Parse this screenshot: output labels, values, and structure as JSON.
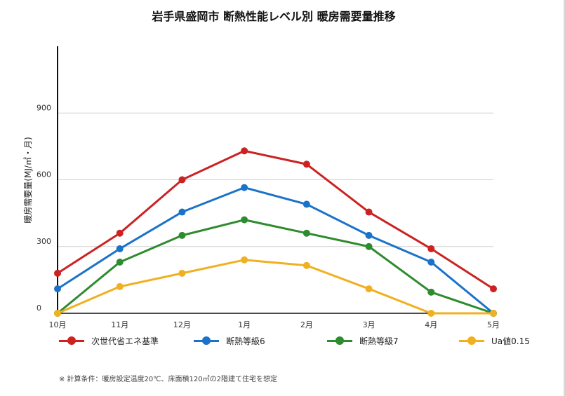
{
  "chart_data": {
    "type": "line",
    "title": "岩手県盛岡市 断熱性能レベル別 暖房需要量推移",
    "ylabel": "暖房需要量(MJ/㎡・月)",
    "xlabel": "",
    "categories": [
      "10月",
      "11月",
      "12月",
      "1月",
      "2月",
      "3月",
      "4月",
      "5月"
    ],
    "y_ticks": [
      "0",
      "300",
      "600",
      "900"
    ],
    "ylim": [
      0,
      1200
    ],
    "grid": true,
    "legend_position": "bottom",
    "series": [
      {
        "name": "次世代省エネ基準",
        "color": "#cc2222",
        "values": [
          180,
          360,
          600,
          730,
          670,
          455,
          290,
          110
        ]
      },
      {
        "name": "断熱等級6",
        "color": "#1a73c8",
        "values": [
          110,
          290,
          455,
          565,
          490,
          350,
          230,
          0
        ]
      },
      {
        "name": "断熱等級7",
        "color": "#2e8b2e",
        "values": [
          0,
          230,
          350,
          420,
          360,
          300,
          95,
          0
        ]
      },
      {
        "name": "Ua値0.15",
        "color": "#f0b020",
        "values": [
          0,
          120,
          180,
          240,
          215,
          110,
          0,
          0
        ]
      }
    ],
    "footnote": "※ 計算条件：暖房設定温度20℃、床面積120㎡の2階建て住宅を想定"
  }
}
